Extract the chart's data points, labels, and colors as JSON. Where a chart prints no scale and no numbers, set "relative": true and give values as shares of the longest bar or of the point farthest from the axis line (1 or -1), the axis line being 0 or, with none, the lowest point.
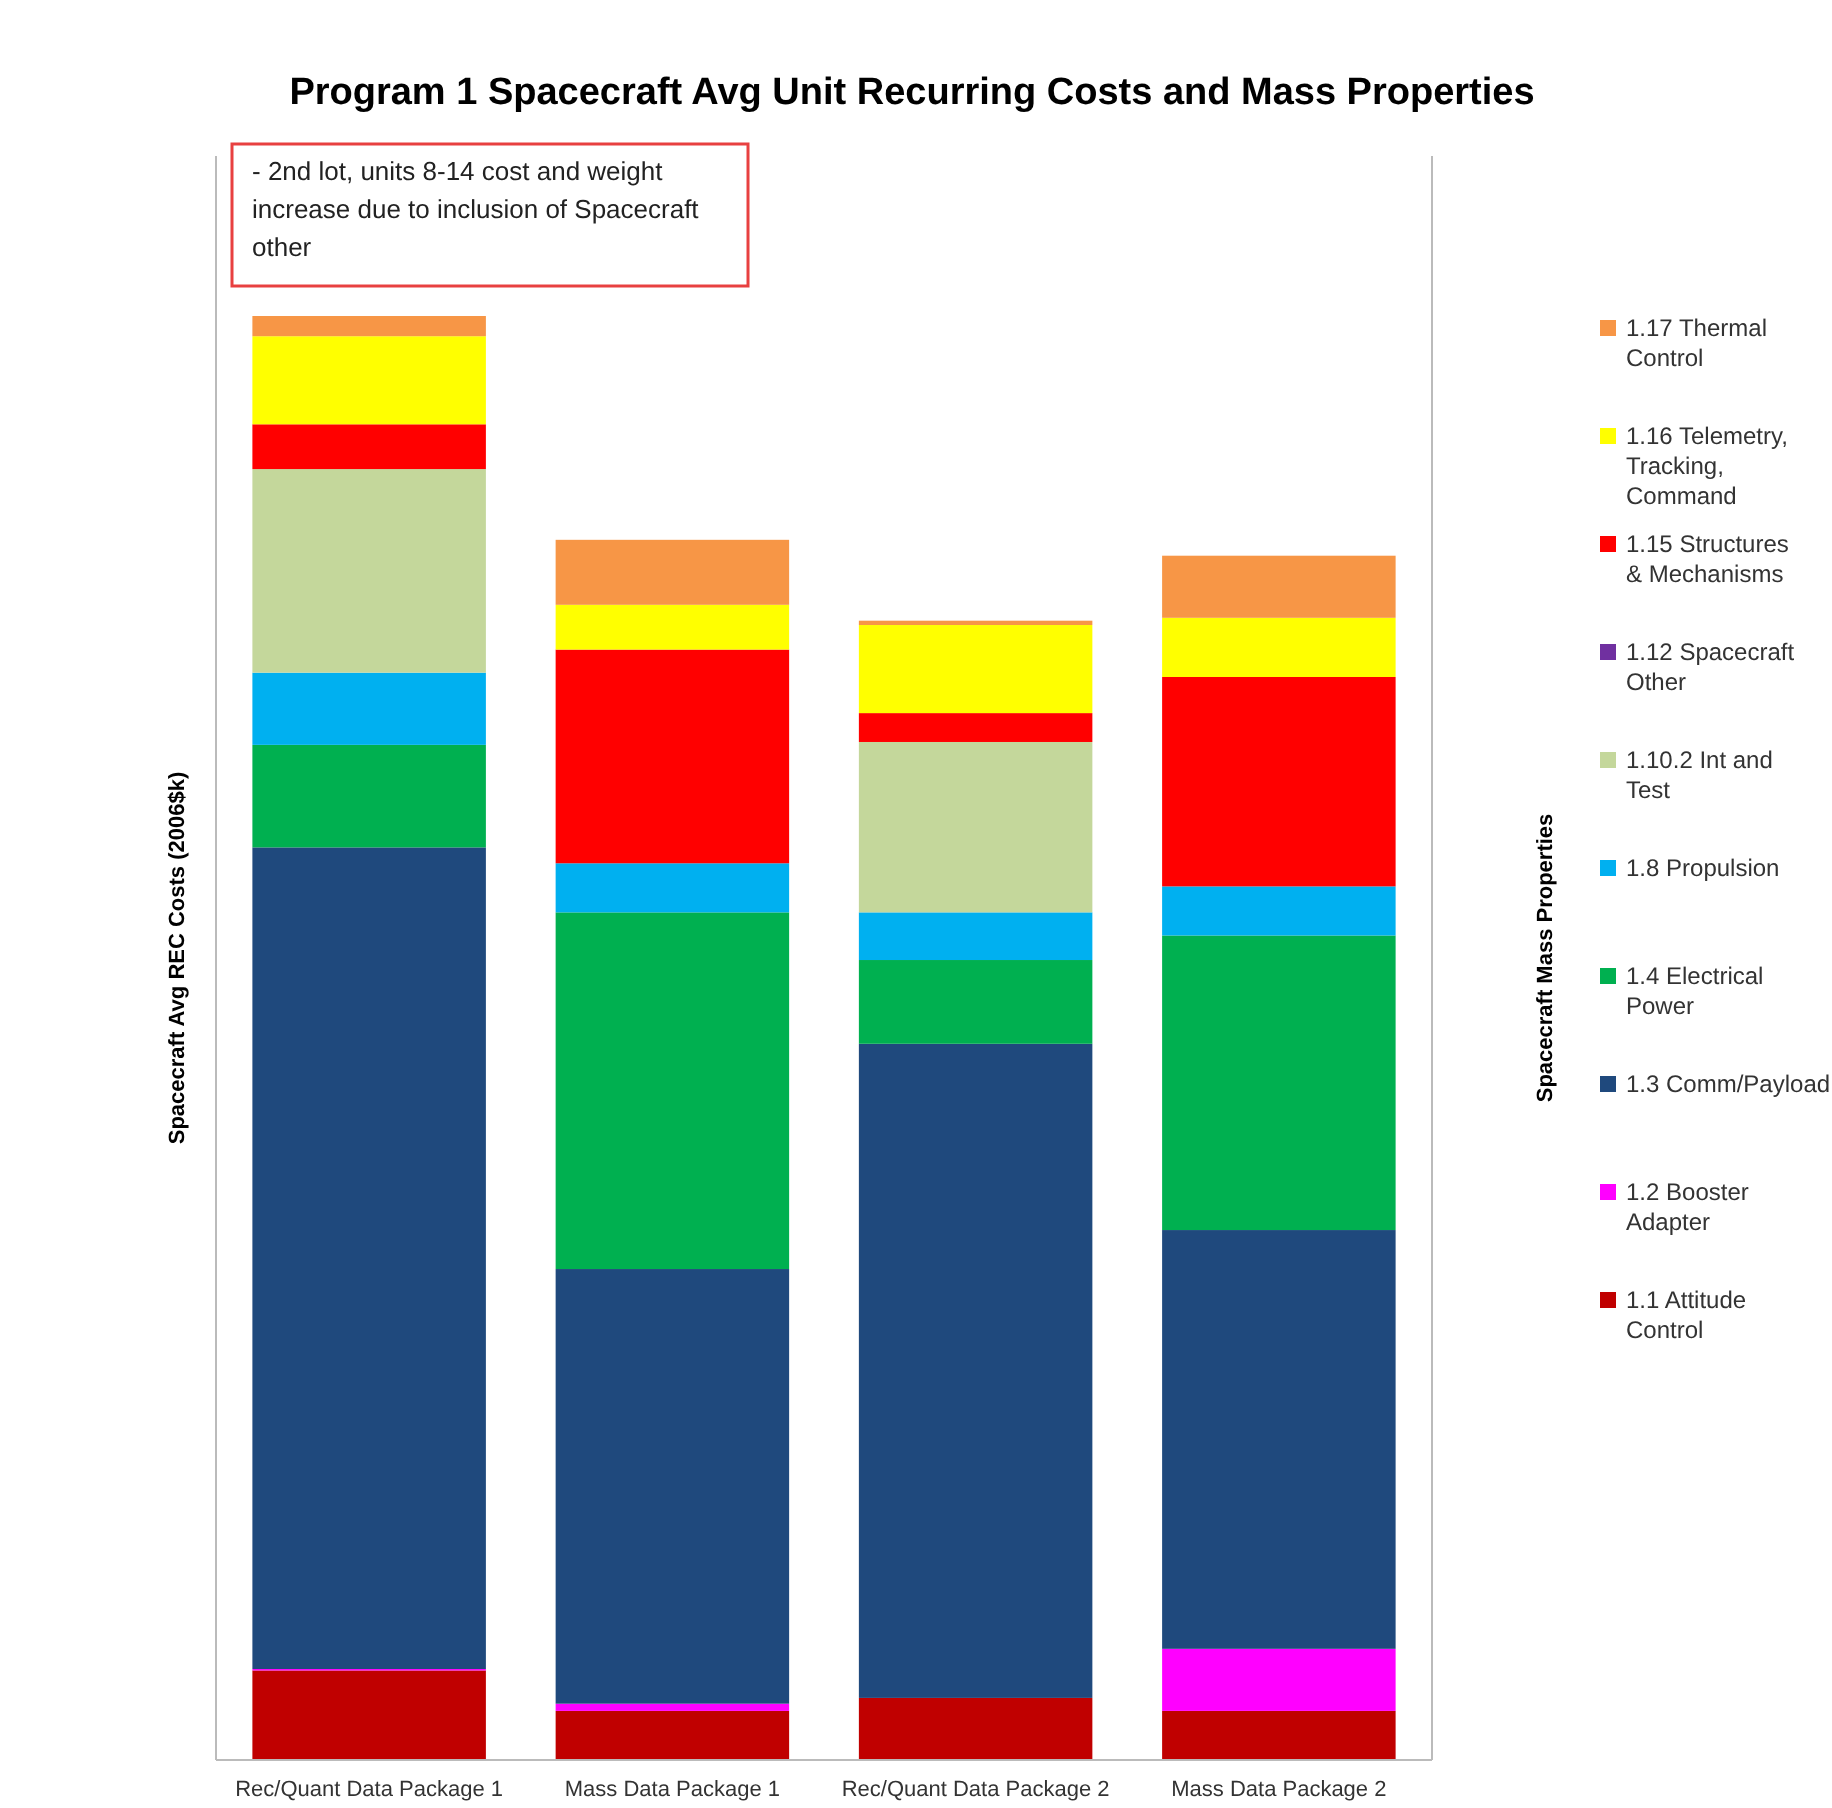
{
  "chart_data": {
    "type": "bar",
    "stacked": true,
    "relative": true,
    "title": "Program 1 Spacecraft Avg Unit Recurring Costs and Mass Properties",
    "ylabel": "Spacecraft Avg REC Costs (2006$k)",
    "y2label": "Spacecraft Mass Properties",
    "legend": "right",
    "annotations": [
      "-  2nd lot, units 8-14 cost and weight increase due to inclusion of Spacecraft other"
    ],
    "categories": [
      "Rec/Quant Data Package 1",
      "Mass Data Package 1",
      "Rec/Quant Data Package 2",
      "Mass Data Package 2"
    ],
    "series": [
      {
        "name": "1.1 Attitude Control",
        "color": "#c00000",
        "values": [
          0.062,
          0.034,
          0.043,
          0.034
        ]
      },
      {
        "name": "1.2 Booster Adapter",
        "color": "#ff00ff",
        "values": [
          0.001,
          0.005,
          0,
          0.043
        ]
      },
      {
        "name": "1.3 Comm/Payload",
        "color": "#1f497d",
        "values": [
          0.569,
          0.301,
          0.453,
          0.29
        ]
      },
      {
        "name": "1.4 Electrical Power",
        "color": "#00b050",
        "values": [
          0.071,
          0.247,
          0.058,
          0.204
        ]
      },
      {
        "name": "1.8 Propulsion",
        "color": "#00b0f0",
        "values": [
          0.05,
          0.034,
          0.033,
          0.034
        ]
      },
      {
        "name": "1.10.2 Int and Test",
        "color": "#c4d79b",
        "values": [
          0.141,
          0,
          0.118,
          0
        ]
      },
      {
        "name": "1.12 Spacecraft Other",
        "color": "#7030a0",
        "values": [
          0,
          0,
          0,
          0
        ]
      },
      {
        "name": "1.15 Structures & Mechanisms",
        "color": "#ff0000",
        "values": [
          0.031,
          0.148,
          0.02,
          0.145
        ]
      },
      {
        "name": "1.16 Telemetry, Tracking, Command",
        "color": "#ffff00",
        "values": [
          0.061,
          0.031,
          0.061,
          0.041
        ]
      },
      {
        "name": "1.17 Thermal Control",
        "color": "#f79646",
        "values": [
          0.014,
          0.045,
          0.003,
          0.043
        ]
      }
    ]
  }
}
